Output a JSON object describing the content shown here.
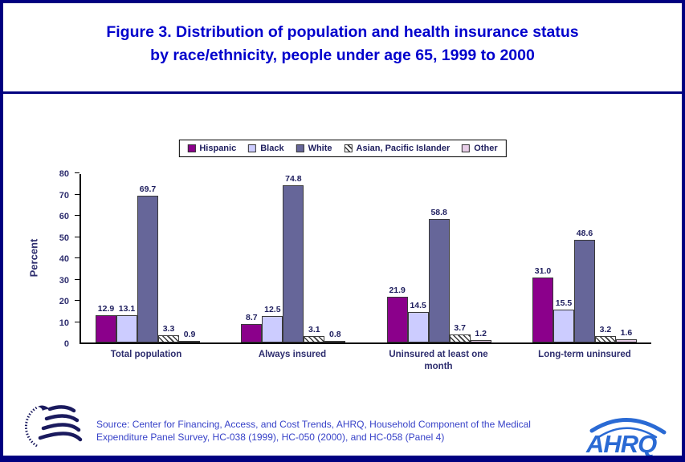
{
  "slide": {
    "title_line1": "Figure 3. Distribution of population and health insurance status",
    "title_line2": "by race/ethnicity, people under age 65, 1999 to 2000",
    "source_line1": "Source: Center for Financing, Access, and Cost Trends, AHRQ, Household Component of the Medical",
    "source_line2": "Expenditure Panel Survey, HC-038 (1999), HC-050 (2000), and HC-058 (Panel 4)",
    "ahrq_logo_text": "AHRQ"
  },
  "colors": {
    "border_navy": "#000080",
    "title_blue": "#0000CC",
    "chart_text_navy": "#2D2D6E",
    "source_blue": "#3742C8",
    "axis_black": "#000000",
    "hispanic": "#8B008B",
    "black_series": "#CCCCFF",
    "white_series": "#666699",
    "other_series": "#E8CEE8"
  },
  "chart_data": {
    "type": "bar",
    "title": "Distribution of population and health insurance status by race/ethnicity, people under age 65, 1999 to 2000",
    "xlabel": "",
    "ylabel": "Percent",
    "ylim": [
      0,
      80
    ],
    "yticks": [
      0,
      10,
      20,
      30,
      40,
      50,
      60,
      70,
      80
    ],
    "grid": false,
    "legend_position": "top",
    "value_labels": true,
    "categories": [
      "Total population",
      "Always insured",
      "Uninsured at least one month",
      "Long-term uninsured"
    ],
    "series": [
      {
        "name": "Hispanic",
        "color": "#8B008B",
        "values": [
          12.9,
          8.7,
          21.9,
          31.0
        ]
      },
      {
        "name": "Black",
        "color": "#CCCCFF",
        "values": [
          13.1,
          12.5,
          14.5,
          15.5
        ]
      },
      {
        "name": "White",
        "color": "#666699",
        "values": [
          69.7,
          74.8,
          58.8,
          48.6
        ]
      },
      {
        "name": "Asian, Pacific Islander",
        "color": "#FFFFFF",
        "hatch": true,
        "values": [
          3.3,
          3.1,
          3.7,
          3.2
        ]
      },
      {
        "name": "Other",
        "color": "#E8CEE8",
        "values": [
          0.9,
          0.8,
          1.2,
          1.6
        ]
      }
    ]
  }
}
